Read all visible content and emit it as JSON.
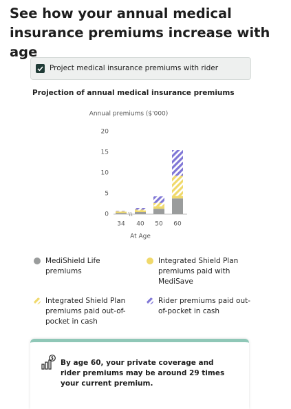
{
  "header": {
    "title": "See how your annual medical insurance premiums increase with age"
  },
  "toggle": {
    "label": "Project medical insurance premiums with rider"
  },
  "section": {
    "title": "Projection of annual medical insurance premiums"
  },
  "chart_data": {
    "type": "stacked_bar",
    "ylabel": "Annual premiums ($'000)",
    "xlabel": "At Age",
    "categories": [
      "34",
      "40",
      "50",
      "60"
    ],
    "ylim": [
      0,
      20
    ],
    "yticks": [
      0,
      5,
      10,
      15,
      20
    ],
    "grid": false,
    "series": [
      {
        "name": "MediShield Life premiums",
        "color": "#9a9c9c",
        "pattern": "solid",
        "values": [
          0.3,
          0.5,
          1.3,
          3.8
        ]
      },
      {
        "name": "Integrated Shield Plan premiums paid with MediSave",
        "color": "#f0d96b",
        "pattern": "solid",
        "values": [
          0.3,
          0.4,
          0.6,
          0.6
        ]
      },
      {
        "name": "Integrated Shield Plan premiums paid out-of-pocket in cash",
        "color": "#f0d96b",
        "pattern": "striped",
        "values": [
          0.1,
          0.2,
          0.8,
          4.9
        ]
      },
      {
        "name": "Rider premiums paid out-of-pocket in cash",
        "color": "#8077d6",
        "pattern": "striped",
        "values": [
          0.1,
          0.4,
          1.6,
          6.2
        ]
      }
    ]
  },
  "callout": {
    "text": "By age 60, your private coverage and rider premiums may be around 29 times your current premium."
  }
}
